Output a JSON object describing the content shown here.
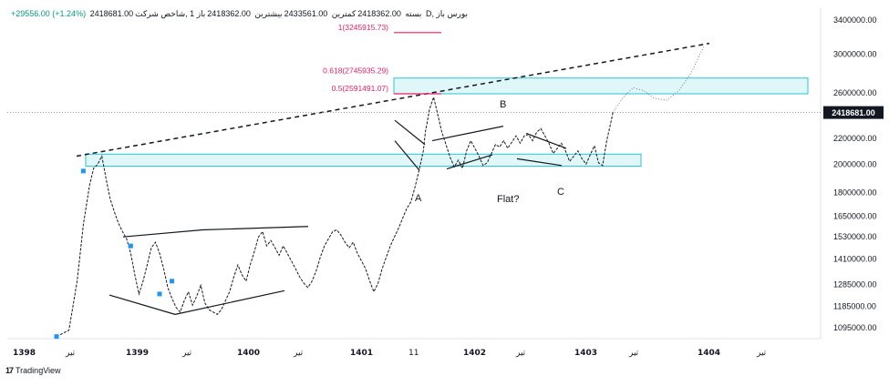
{
  "header": {
    "symbol": "1 ,شاخص شرکت D, بورس باز",
    "open": "2418362.00",
    "open_label": "باز",
    "high_label": "بیشترین",
    "high": "2433561.00",
    "low_label": "کمترین",
    "low": "2418362.00",
    "close_label": "بسته",
    "close": "2418681.00",
    "change": "+29556.00 (+1.24%)"
  },
  "brand": {
    "logo": "17",
    "name": "TradingView"
  },
  "chart_data": {
    "type": "line",
    "y_scale": "log",
    "ylim": [
      1050000,
      3500000
    ],
    "y_ticks": [
      "3400000.00",
      "3000000.00",
      "2600000.00",
      "2200000.00",
      "2000000.00",
      "1800000.00",
      "1650000.00",
      "1530000.00",
      "1410000.00",
      "1285000.00",
      "1185000.00",
      "1095000.00"
    ],
    "x_ticks": [
      "1398",
      "تیر",
      "1399",
      "تیر",
      "1400",
      "تیر",
      "1401",
      "11",
      "1402",
      "تیر",
      "1403",
      "تیر",
      "1404",
      "تیر"
    ],
    "last_price": "2418681.00",
    "fib_levels": [
      {
        "label": "1(3245915.73)",
        "value": 3245915.73
      },
      {
        "label": "0.618(2745935.29)",
        "value": 2745935.29
      },
      {
        "label": "0.5(2591491.07)",
        "value": 2591491.07
      }
    ],
    "annotations": [
      "A",
      "B",
      "C",
      "Flat?"
    ],
    "series": [
      {
        "values": [
          [
            0,
            1060000
          ],
          [
            6,
            1085000
          ],
          [
            10,
            1300000
          ],
          [
            13,
            1600000
          ],
          [
            16,
            1850000
          ],
          [
            18,
            1970000
          ],
          [
            20,
            2000000
          ],
          [
            22,
            2060000
          ],
          [
            24,
            1900000
          ],
          [
            26,
            1760000
          ],
          [
            28,
            1680000
          ],
          [
            30,
            1610000
          ],
          [
            32,
            1560000
          ],
          [
            34,
            1520000
          ],
          [
            36,
            1440000
          ],
          [
            38,
            1330000
          ],
          [
            40,
            1240000
          ],
          [
            42,
            1300000
          ],
          [
            44,
            1380000
          ],
          [
            46,
            1470000
          ],
          [
            48,
            1500000
          ],
          [
            50,
            1440000
          ],
          [
            52,
            1360000
          ],
          [
            54,
            1270000
          ],
          [
            56,
            1220000
          ],
          [
            58,
            1180000
          ],
          [
            60,
            1160000
          ],
          [
            62,
            1210000
          ],
          [
            64,
            1250000
          ],
          [
            66,
            1190000
          ],
          [
            68,
            1230000
          ],
          [
            70,
            1280000
          ],
          [
            72,
            1200000
          ],
          [
            74,
            1170000
          ],
          [
            76,
            1160000
          ],
          [
            78,
            1150000
          ],
          [
            80,
            1170000
          ],
          [
            82,
            1210000
          ],
          [
            84,
            1250000
          ],
          [
            86,
            1320000
          ],
          [
            88,
            1380000
          ],
          [
            90,
            1330000
          ],
          [
            92,
            1300000
          ],
          [
            94,
            1380000
          ],
          [
            96,
            1450000
          ],
          [
            98,
            1530000
          ],
          [
            100,
            1560000
          ],
          [
            102,
            1480000
          ],
          [
            104,
            1510000
          ],
          [
            106,
            1470000
          ],
          [
            108,
            1430000
          ],
          [
            110,
            1480000
          ],
          [
            112,
            1440000
          ],
          [
            114,
            1400000
          ],
          [
            116,
            1360000
          ],
          [
            118,
            1320000
          ],
          [
            120,
            1290000
          ],
          [
            122,
            1270000
          ],
          [
            124,
            1300000
          ],
          [
            126,
            1350000
          ],
          [
            128,
            1420000
          ],
          [
            130,
            1480000
          ],
          [
            132,
            1520000
          ],
          [
            134,
            1560000
          ],
          [
            136,
            1570000
          ],
          [
            138,
            1540000
          ],
          [
            140,
            1500000
          ],
          [
            142,
            1470000
          ],
          [
            144,
            1500000
          ],
          [
            146,
            1440000
          ],
          [
            148,
            1400000
          ],
          [
            150,
            1360000
          ],
          [
            152,
            1300000
          ],
          [
            154,
            1250000
          ],
          [
            156,
            1290000
          ],
          [
            158,
            1360000
          ],
          [
            160,
            1420000
          ],
          [
            162,
            1480000
          ],
          [
            164,
            1530000
          ],
          [
            166,
            1580000
          ],
          [
            168,
            1640000
          ],
          [
            170,
            1700000
          ],
          [
            172,
            1740000
          ],
          [
            174,
            1840000
          ],
          [
            176,
            1960000
          ],
          [
            178,
            2100000
          ],
          [
            179,
            2250000
          ],
          [
            181,
            2450000
          ],
          [
            183,
            2560000
          ],
          [
            185,
            2400000
          ],
          [
            187,
            2250000
          ],
          [
            189,
            2150000
          ],
          [
            191,
            2050000
          ],
          [
            193,
            1980000
          ],
          [
            195,
            2030000
          ],
          [
            197,
            1970000
          ],
          [
            199,
            2100000
          ],
          [
            201,
            2180000
          ],
          [
            203,
            2120000
          ],
          [
            205,
            2060000
          ],
          [
            207,
            1990000
          ],
          [
            209,
            2010000
          ],
          [
            211,
            2080000
          ],
          [
            213,
            2150000
          ],
          [
            215,
            2130000
          ],
          [
            217,
            2180000
          ],
          [
            219,
            2120000
          ],
          [
            221,
            2170000
          ],
          [
            223,
            2220000
          ],
          [
            225,
            2160000
          ],
          [
            227,
            2220000
          ],
          [
            229,
            2230000
          ],
          [
            231,
            2180000
          ],
          [
            233,
            2250000
          ],
          [
            235,
            2280000
          ],
          [
            237,
            2220000
          ],
          [
            239,
            2160000
          ],
          [
            241,
            2080000
          ],
          [
            243,
            2120000
          ],
          [
            245,
            2160000
          ],
          [
            247,
            2100000
          ],
          [
            249,
            2020000
          ],
          [
            251,
            2060000
          ],
          [
            253,
            2100000
          ],
          [
            255,
            2040000
          ],
          [
            257,
            2000000
          ],
          [
            259,
            2070000
          ],
          [
            261,
            2140000
          ],
          [
            263,
            2010000
          ],
          [
            265,
            1990000
          ],
          [
            267,
            2180000
          ],
          [
            269,
            2330000
          ],
          [
            270,
            2418681
          ]
        ]
      }
    ],
    "projection": [
      [
        270,
        2418681
      ],
      [
        275,
        2560000
      ],
      [
        280,
        2650000
      ],
      [
        285,
        2620000
      ],
      [
        290,
        2550000
      ],
      [
        296,
        2530000
      ],
      [
        302,
        2620000
      ],
      [
        308,
        2800000
      ],
      [
        314,
        3080000
      ]
    ]
  }
}
